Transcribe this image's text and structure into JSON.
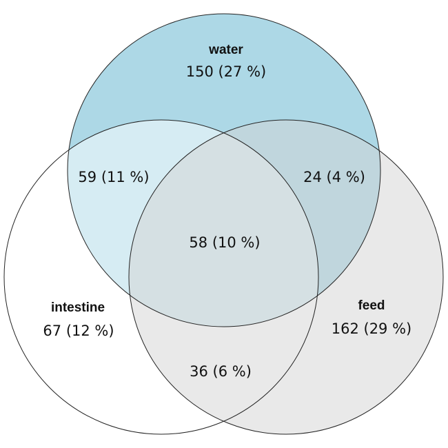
{
  "venn": {
    "sets": [
      {
        "key": "water",
        "name": "water",
        "color": "#add8e6",
        "opacity": 1.0
      },
      {
        "key": "intestine",
        "name": "intestine",
        "color": "#ffffff",
        "opacity": 1.0
      },
      {
        "key": "feed",
        "name": "feed",
        "color": "#d3d3d3",
        "opacity": 1.0
      }
    ],
    "overlay_color": "#ffffff",
    "overlay_opacity": 0.5,
    "regions": {
      "water_only": "150 (27 %)",
      "water_intestine": "59 (11 %)",
      "water_feed": "24 (4 %)",
      "all_three": "58 (10 %)",
      "intestine_only": "67 (12 %)",
      "feed_only": "162 (29 %)",
      "intestine_feed": "36 (6 %)"
    },
    "counts": {
      "water_only": 150,
      "water_intestine": 59,
      "water_feed": 24,
      "all_three": 58,
      "intestine_only": 67,
      "feed_only": 162,
      "intestine_feed": 36
    }
  }
}
